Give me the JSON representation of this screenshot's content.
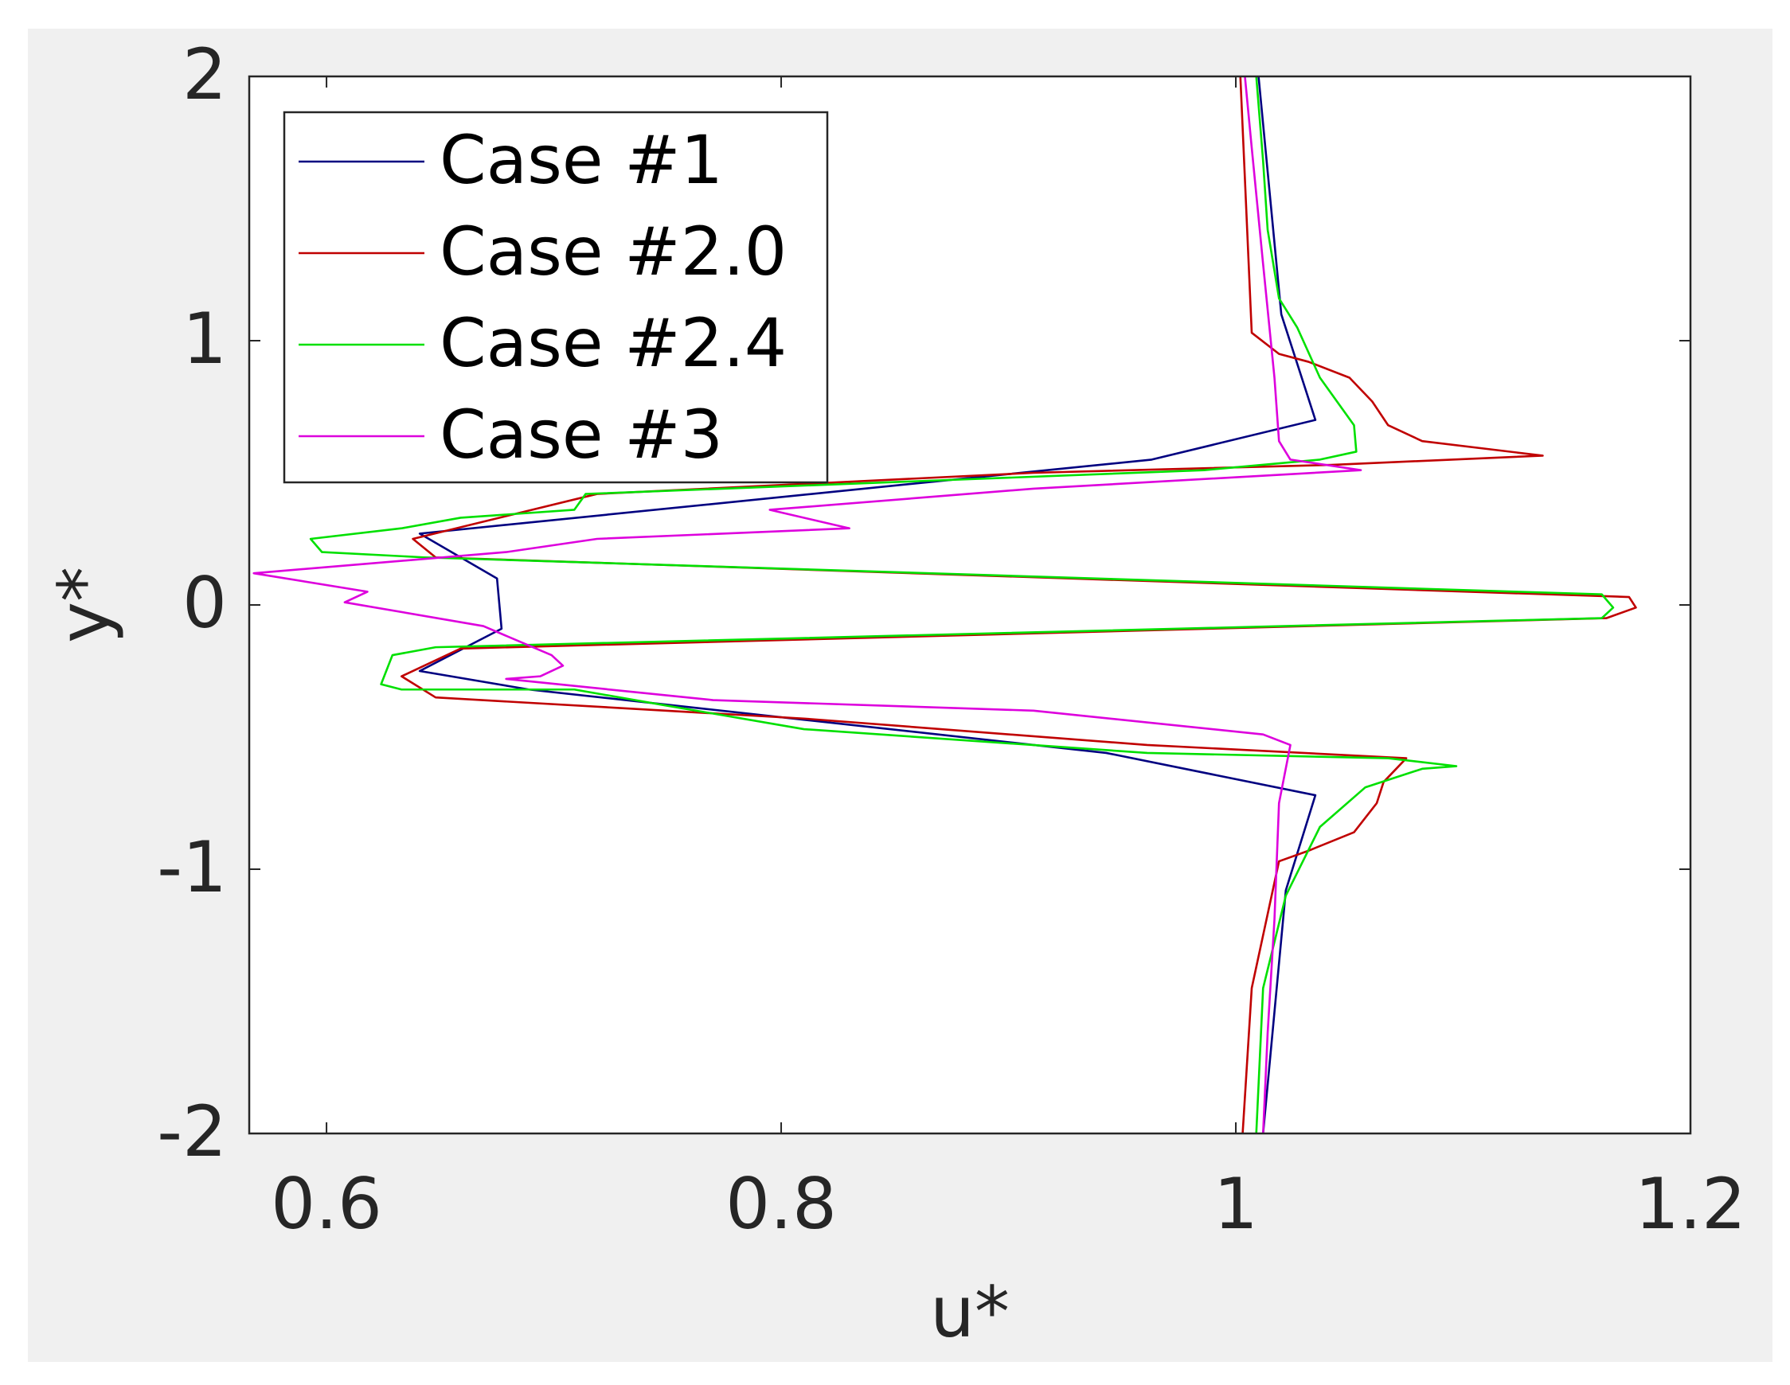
{
  "chart_data": {
    "type": "line",
    "xlabel": "u*",
    "ylabel": "y*",
    "xlim": [
      0.566,
      1.2
    ],
    "ylim": [
      -2,
      2
    ],
    "xticks": [
      0.6,
      0.8,
      1,
      1.2
    ],
    "yticks": [
      -2,
      -1,
      0,
      1,
      2
    ],
    "legend": "upper left",
    "series": [
      {
        "name": "Case #1",
        "color": "#000080",
        "x": [
          1.01,
          1.02,
          1.035,
          0.963,
          0.641,
          0.675,
          0.677,
          0.641,
          0.689,
          0.943,
          1.035,
          1.022,
          1.012
        ],
        "values": [
          2,
          1.1,
          0.7,
          0.55,
          0.27,
          0.1,
          -0.09,
          -0.25,
          -0.32,
          -0.56,
          -0.72,
          -1.08,
          -2
        ]
      },
      {
        "name": "Case #2.0",
        "color": "#c00000",
        "x": [
          1.002,
          1.007,
          1.019,
          1.032,
          1.05,
          1.06,
          1.067,
          1.082,
          1.135,
          1.042,
          0.911,
          0.719,
          0.638,
          0.648,
          1.173,
          1.176,
          1.163,
          0.659,
          0.633,
          0.648,
          0.81,
          0.961,
          1.075,
          1.065,
          1.062,
          1.052,
          1.032,
          1.019,
          1.007,
          1.003
        ],
        "values": [
          2,
          1.03,
          0.95,
          0.92,
          0.86,
          0.77,
          0.68,
          0.62,
          0.565,
          0.53,
          0.5,
          0.42,
          0.25,
          0.18,
          0.03,
          -0.01,
          -0.05,
          -0.165,
          -0.27,
          -0.35,
          -0.43,
          -0.53,
          -0.58,
          -0.67,
          -0.75,
          -0.86,
          -0.93,
          -0.97,
          -1.45,
          -2
        ]
      },
      {
        "name": "Case #2.4",
        "color": "#00e000",
        "x": [
          1.009,
          1.012,
          1.014,
          1.019,
          1.027,
          1.037,
          1.052,
          1.053,
          1.037,
          0.986,
          0.714,
          0.709,
          0.659,
          0.633,
          0.593,
          0.598,
          0.643,
          1.161,
          1.166,
          1.161,
          0.648,
          0.629,
          0.624,
          0.633,
          0.709,
          0.749,
          0.81,
          0.961,
          1.067,
          1.097,
          1.082,
          1.057,
          1.037,
          1.022,
          1.012,
          1.009
        ],
        "values": [
          2,
          1.68,
          1.42,
          1.16,
          1.05,
          0.86,
          0.68,
          0.58,
          0.55,
          0.51,
          0.42,
          0.36,
          0.33,
          0.29,
          0.25,
          0.2,
          0.18,
          0.04,
          -0.01,
          -0.05,
          -0.16,
          -0.19,
          -0.3,
          -0.32,
          -0.32,
          -0.38,
          -0.47,
          -0.56,
          -0.58,
          -0.61,
          -0.62,
          -0.69,
          -0.84,
          -1.1,
          -1.45,
          -2
        ]
      },
      {
        "name": "Case #3",
        "color": "#dd00dd",
        "x": [
          1.004,
          1.007,
          1.012,
          1.017,
          1.019,
          1.024,
          1.055,
          0.911,
          0.795,
          0.83,
          0.719,
          0.679,
          0.568,
          0.618,
          0.608,
          0.669,
          0.699,
          0.704,
          0.694,
          0.679,
          0.77,
          0.911,
          1.012,
          1.024,
          1.019,
          1.017,
          1.014,
          1.012
        ],
        "values": [
          2,
          1.73,
          1.29,
          0.86,
          0.62,
          0.55,
          0.51,
          0.44,
          0.36,
          0.29,
          0.25,
          0.2,
          0.12,
          0.05,
          0.01,
          -0.08,
          -0.19,
          -0.23,
          -0.27,
          -0.28,
          -0.36,
          -0.4,
          -0.49,
          -0.53,
          -0.75,
          -1.19,
          -1.62,
          -2
        ]
      }
    ]
  }
}
